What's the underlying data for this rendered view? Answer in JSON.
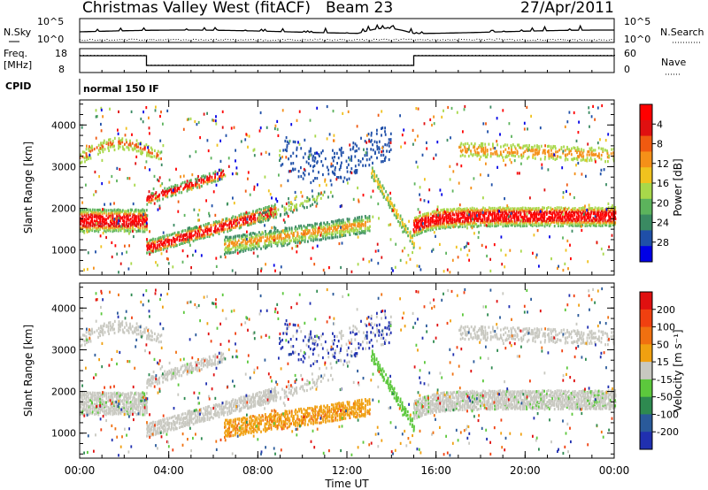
{
  "header": {
    "station": "Christmas Valley West (fitACF)",
    "beam": "Beam 23",
    "date": "27/Apr/2011"
  },
  "noise_panel": {
    "left_label": "N.Sky",
    "right_label": "N.Search",
    "ticks_left": [
      "10^5",
      "10^0"
    ],
    "ticks_right": [
      "10^5",
      "10^0"
    ]
  },
  "freq_panel": {
    "left_label_line1": "Freq.",
    "left_label_line2": "[MHz]",
    "right_label": "Nave",
    "ticks_left": [
      "18",
      "8"
    ],
    "ticks_right": [
      "60",
      "0"
    ]
  },
  "cpid_panel": {
    "label": "CPID",
    "mode": "normal 150 IF"
  },
  "chart_data": [
    {
      "type": "heatmap",
      "name": "power",
      "ylabel": "Slant Range [km]",
      "xlabel": "Time UT",
      "xlim_hours": [
        0,
        24
      ],
      "ylim_km": [
        400,
        4600
      ],
      "y_ticks": [
        1000,
        2000,
        3000,
        4000
      ],
      "colorbar": {
        "label": "Power [dB]",
        "ticks": [
          "4",
          "8",
          "12",
          "16",
          "20",
          "24",
          "28"
        ],
        "colors": [
          "#0000e6",
          "#1f4fa8",
          "#3a8a62",
          "#5cb35c",
          "#a8d84a",
          "#f0c21e",
          "#f59018",
          "#f05a10",
          "#e01010",
          "#ff0000"
        ]
      }
    },
    {
      "type": "heatmap",
      "name": "velocity",
      "ylabel": "Slant Range [km]",
      "xlabel": "Time UT",
      "xlim_hours": [
        0,
        24
      ],
      "ylim_km": [
        400,
        4600
      ],
      "y_ticks": [
        1000,
        2000,
        3000,
        4000
      ],
      "colorbar": {
        "label": "Velocity [m s⁻¹]",
        "ticks": [
          "200",
          "100",
          "50",
          "15",
          "-15",
          "-50",
          "-100",
          "-200"
        ],
        "colors": [
          "#2030b0",
          "#2a5a9a",
          "#2e8a50",
          "#5cc83c",
          "#c8c8c0",
          "#f0a010",
          "#f07010",
          "#f04010",
          "#e01010"
        ]
      }
    }
  ],
  "x_axis": {
    "label": "Time UT",
    "ticks": [
      "00:00",
      "04:00",
      "08:00",
      "12:00",
      "16:00",
      "20:00",
      "00:00"
    ]
  }
}
